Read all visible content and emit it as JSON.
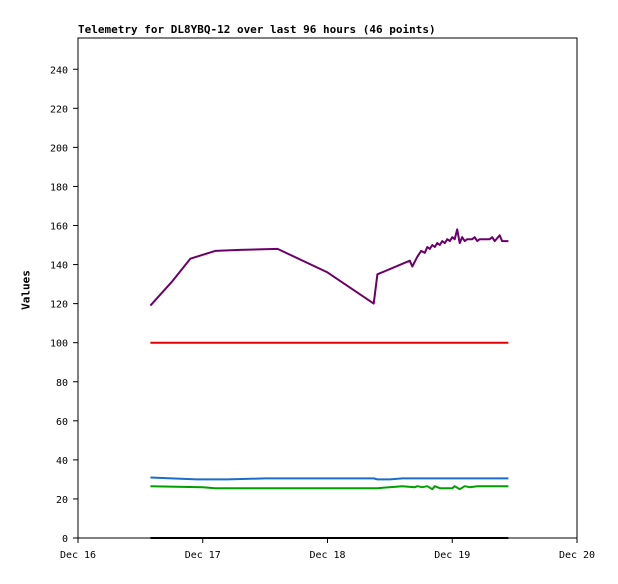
{
  "chart_data": {
    "type": "line",
    "title": "Telemetry for DL8YBQ-12 over last 96 hours (46 points)",
    "xlabel": "",
    "ylabel": "Values",
    "ylim": [
      0,
      256
    ],
    "yticks": [
      0,
      20,
      40,
      60,
      80,
      100,
      120,
      140,
      160,
      180,
      200,
      220,
      240
    ],
    "xlim": [
      0,
      4
    ],
    "xticks": [
      {
        "label": "Dec 16",
        "x": 0
      },
      {
        "label": "Dec 17",
        "x": 1
      },
      {
        "label": "Dec 18",
        "x": 2
      },
      {
        "label": "Dec 19",
        "x": 3
      },
      {
        "label": "Dec 20",
        "x": 4
      }
    ],
    "grid": false,
    "series": [
      {
        "color": "#6b006b",
        "points": [
          [
            0.58,
            119
          ],
          [
            0.75,
            131
          ],
          [
            0.9,
            143
          ],
          [
            1.1,
            147
          ],
          [
            1.3,
            147.5
          ],
          [
            1.6,
            148
          ],
          [
            2.0,
            136
          ],
          [
            2.37,
            120
          ],
          [
            2.4,
            135
          ],
          [
            2.66,
            142
          ],
          [
            2.68,
            139
          ],
          [
            2.72,
            144
          ],
          [
            2.75,
            147
          ],
          [
            2.78,
            146
          ],
          [
            2.8,
            149
          ],
          [
            2.82,
            148
          ],
          [
            2.84,
            150
          ],
          [
            2.86,
            149
          ],
          [
            2.88,
            151
          ],
          [
            2.9,
            150
          ],
          [
            2.92,
            152
          ],
          [
            2.94,
            151
          ],
          [
            2.96,
            153
          ],
          [
            2.98,
            152
          ],
          [
            3.0,
            154
          ],
          [
            3.02,
            153
          ],
          [
            3.04,
            158
          ],
          [
            3.06,
            151
          ],
          [
            3.08,
            154
          ],
          [
            3.1,
            152
          ],
          [
            3.12,
            153
          ],
          [
            3.16,
            153
          ],
          [
            3.18,
            154
          ],
          [
            3.2,
            152
          ],
          [
            3.22,
            153
          ],
          [
            3.26,
            153
          ],
          [
            3.3,
            153
          ],
          [
            3.32,
            154
          ],
          [
            3.34,
            152
          ],
          [
            3.38,
            155
          ],
          [
            3.4,
            152
          ],
          [
            3.45,
            152
          ]
        ]
      },
      {
        "color": "#e00000",
        "points": [
          [
            0.58,
            100
          ],
          [
            3.45,
            100
          ]
        ]
      },
      {
        "color": "#1a6ec8",
        "points": [
          [
            0.58,
            31
          ],
          [
            0.75,
            30.5
          ],
          [
            0.95,
            30
          ],
          [
            1.2,
            30
          ],
          [
            1.5,
            30.5
          ],
          [
            1.9,
            30.5
          ],
          [
            2.37,
            30.5
          ],
          [
            2.4,
            30
          ],
          [
            2.5,
            30
          ],
          [
            2.6,
            30.5
          ],
          [
            3.0,
            30.5
          ],
          [
            3.45,
            30.5
          ]
        ]
      },
      {
        "color": "#00a000",
        "points": [
          [
            0.58,
            26.5
          ],
          [
            1.0,
            26
          ],
          [
            1.1,
            25.5
          ],
          [
            1.5,
            25.5
          ],
          [
            2.0,
            25.5
          ],
          [
            2.4,
            25.5
          ],
          [
            2.6,
            26.5
          ],
          [
            2.7,
            26
          ],
          [
            2.72,
            26.5
          ],
          [
            2.76,
            26
          ],
          [
            2.8,
            26.5
          ],
          [
            2.84,
            25
          ],
          [
            2.86,
            26.5
          ],
          [
            2.9,
            25.5
          ],
          [
            3.0,
            25.5
          ],
          [
            3.02,
            26.5
          ],
          [
            3.06,
            25
          ],
          [
            3.1,
            26.5
          ],
          [
            3.14,
            26
          ],
          [
            3.2,
            26.5
          ],
          [
            3.3,
            26.5
          ],
          [
            3.45,
            26.5
          ]
        ]
      },
      {
        "color": "#000000",
        "points": [
          [
            0.58,
            0
          ],
          [
            3.45,
            0
          ]
        ]
      }
    ]
  }
}
